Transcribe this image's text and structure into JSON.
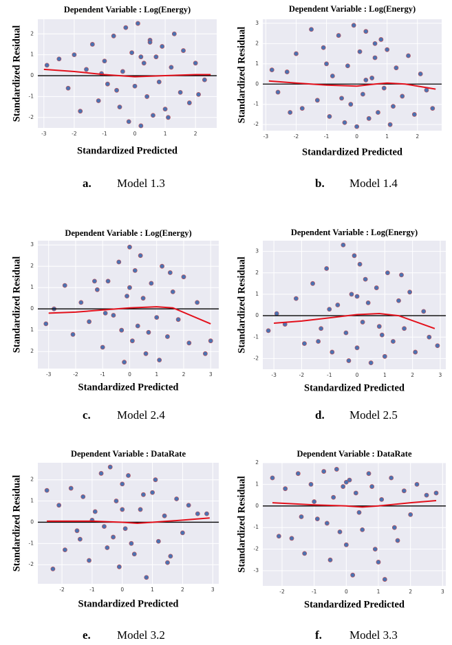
{
  "chart_data": [
    {
      "type": "scatter",
      "title": "Dependent Variable : Log(Energy)",
      "xlabel": "Standardized Predicted",
      "ylabel": "Standardized Residual",
      "caption_letter": "a.",
      "caption": "Model 1.3",
      "xlim": [
        -3.2,
        2.7
      ],
      "xticks": [
        -3,
        -2,
        -1,
        0,
        1,
        2
      ],
      "ylim": [
        -2.5,
        2.7
      ],
      "yticks": [
        -2,
        -1,
        0,
        1,
        2
      ],
      "grid": true,
      "hline": 0,
      "series": [
        {
          "color": "#4c72b0",
          "edge_color": "#c44e52",
          "x": [
            -2.9,
            -2.5,
            -2.2,
            -2.0,
            -1.8,
            -1.6,
            -1.4,
            -1.2,
            -1.0,
            -0.9,
            -0.7,
            -0.5,
            -0.4,
            -0.3,
            -0.2,
            -0.1,
            0,
            0.1,
            0.2,
            0.3,
            0.4,
            0.5,
            0.6,
            0.7,
            0.8,
            0.9,
            1.0,
            1.2,
            1.3,
            1.5,
            1.6,
            1.8,
            2.0,
            2.1,
            2.3,
            -0.6,
            0.2,
            1.1,
            -1.1,
            0.5
          ],
          "values": [
            0.5,
            0.8,
            -0.6,
            1.0,
            -1.7,
            0.3,
            1.5,
            -1.2,
            0.7,
            -0.4,
            1.9,
            -1.5,
            0.2,
            2.3,
            -2.2,
            1.1,
            -0.5,
            2.5,
            -2.4,
            0.6,
            -1.0,
            1.7,
            -1.9,
            0.9,
            -0.3,
            1.4,
            -1.6,
            0.4,
            2.0,
            -0.8,
            1.2,
            -1.3,
            0.6,
            -0.9,
            -0.2,
            -0.7,
            0.9,
            -2.0,
            0.1,
            1.6
          ]
        }
      ],
      "trend": {
        "color": "#e3101b",
        "x": [
          -3,
          -2,
          -1,
          0,
          1,
          2,
          2.5
        ],
        "values": [
          0.3,
          0.2,
          0.05,
          -0.05,
          0.0,
          0.05,
          0.05
        ]
      }
    },
    {
      "type": "scatter",
      "title": "Dependent Variable : Log(Energy)",
      "xlabel": "Standardized Predicted",
      "ylabel": "Standardized Residual",
      "caption_letter": "b.",
      "caption": "Model 1.4",
      "xlim": [
        -3.1,
        2.8
      ],
      "xticks": [
        -3,
        -2,
        -1,
        0,
        1,
        2
      ],
      "ylim": [
        -2.3,
        3.2
      ],
      "yticks": [
        -2,
        -1,
        0,
        1,
        2,
        3
      ],
      "grid": true,
      "hline": 0,
      "series": [
        {
          "color": "#4c72b0",
          "edge_color": "#c44e52",
          "x": [
            -2.8,
            -2.6,
            -2.3,
            -2.0,
            -1.8,
            -1.5,
            -1.3,
            -1.1,
            -0.9,
            -0.8,
            -0.6,
            -0.4,
            -0.3,
            -0.2,
            -0.1,
            0,
            0.1,
            0.2,
            0.3,
            0.4,
            0.5,
            0.6,
            0.7,
            0.8,
            0.9,
            1.0,
            1.2,
            1.3,
            1.5,
            1.7,
            1.9,
            2.1,
            2.3,
            2.5,
            -0.5,
            0.3,
            1.1,
            -1.0,
            0.6,
            -2.2
          ],
          "values": [
            0.7,
            -0.4,
            0.6,
            1.5,
            -1.2,
            2.7,
            -0.8,
            1.8,
            -1.6,
            0.4,
            2.4,
            -1.9,
            0.9,
            -1.0,
            2.9,
            -2.1,
            1.6,
            -0.5,
            2.6,
            -1.7,
            0.3,
            1.3,
            -1.4,
            2.2,
            -0.2,
            1.7,
            -1.1,
            0.8,
            -0.6,
            1.4,
            -1.5,
            0.5,
            -0.3,
            -1.2,
            -0.7,
            0.2,
            -2.0,
            1.0,
            2.0,
            -1.4
          ]
        }
      ],
      "trend": {
        "color": "#e3101b",
        "x": [
          -2.9,
          -2,
          -1,
          0,
          0.6,
          1,
          1.6,
          2.6
        ],
        "values": [
          0.15,
          0.05,
          -0.05,
          -0.1,
          0.0,
          0.05,
          0.0,
          -0.25
        ]
      }
    },
    {
      "type": "scatter",
      "title": "Dependent Variable : Log(Energy)",
      "xlabel": "Standardized Predicted",
      "ylabel": "Standardized Residual",
      "caption_letter": "c.",
      "caption": "Model 2.4",
      "xlim": [
        -3.4,
        3.3
      ],
      "xticks": [
        -3,
        -2,
        -1,
        0,
        1,
        2,
        3
      ],
      "ylim": [
        -2.8,
        3.2
      ],
      "yticks": [
        3,
        2,
        1,
        0,
        {
          "value": -1,
          "label": "1"
        },
        {
          "value": -2,
          "label": "2"
        }
      ],
      "grid": true,
      "hline": 0,
      "series": [
        {
          "color": "#4c72b0",
          "edge_color": "#c44e52",
          "x": [
            -3.1,
            -2.8,
            -2.4,
            -2.1,
            -1.8,
            -1.5,
            -1.2,
            -1.0,
            -0.8,
            -0.6,
            -0.4,
            -0.2,
            -0.1,
            0,
            0.1,
            0.2,
            0.3,
            0.4,
            0.6,
            0.8,
            1.0,
            1.2,
            1.4,
            1.6,
            1.8,
            2.0,
            2.2,
            2.5,
            2.8,
            3.0,
            -0.3,
            0.5,
            1.1,
            -0.9,
            0.0,
            -1.3,
            1.5,
            0.7
          ],
          "values": [
            -0.7,
            0.0,
            1.1,
            -1.2,
            0.3,
            -0.6,
            0.9,
            -1.8,
            1.3,
            -0.3,
            2.2,
            -2.5,
            0.6,
            2.9,
            -1.5,
            1.8,
            -0.8,
            2.5,
            -2.1,
            1.2,
            -0.4,
            2.0,
            -1.3,
            0.8,
            -0.5,
            1.5,
            -1.6,
            0.3,
            -2.1,
            -1.5,
            -1.0,
            0.5,
            -2.4,
            -0.2,
            1.0,
            1.3,
            1.7,
            -1.1
          ]
        }
      ],
      "trend": {
        "color": "#e3101b",
        "x": [
          -3,
          -2,
          -1,
          0,
          1,
          1.6,
          3
        ],
        "values": [
          -0.2,
          -0.15,
          -0.05,
          0.05,
          0.1,
          0.05,
          -0.7
        ]
      }
    },
    {
      "type": "scatter",
      "title": "Dependent Variable : Log(Energy)",
      "xlabel": "Standardized Predicted",
      "ylabel": "Standardized Residual",
      "caption_letter": "d.",
      "caption": "Model 2.5",
      "xlim": [
        -3.4,
        3.2
      ],
      "xticks": [
        -3,
        -2,
        -1,
        0,
        1,
        2,
        3
      ],
      "ylim": [
        -2.5,
        3.5
      ],
      "yticks": [
        -2,
        -1,
        0,
        1,
        2,
        3
      ],
      "grid": true,
      "hline": 0,
      "series": [
        {
          "color": "#4c72b0",
          "edge_color": "#c44e52",
          "x": [
            -3.2,
            -2.9,
            -2.6,
            -2.2,
            -1.9,
            -1.6,
            -1.3,
            -1.1,
            -0.9,
            -0.7,
            -0.5,
            -0.3,
            -0.2,
            -0.1,
            0,
            0.1,
            0.2,
            0.3,
            0.5,
            0.7,
            0.9,
            1.1,
            1.3,
            1.5,
            1.7,
            1.9,
            2.1,
            2.4,
            2.6,
            2.9,
            -0.4,
            0.4,
            1.0,
            -1.0,
            0.0,
            -1.4,
            1.6,
            0.8
          ],
          "values": [
            -0.7,
            0.1,
            -0.4,
            0.8,
            -1.3,
            1.5,
            -0.6,
            2.2,
            -1.7,
            0.5,
            3.3,
            -2.1,
            1.0,
            2.8,
            -1.5,
            2.4,
            -0.3,
            1.7,
            -2.2,
            1.3,
            -0.9,
            2.0,
            -1.2,
            0.7,
            -0.6,
            1.1,
            -1.7,
            0.2,
            -1.0,
            -1.4,
            -0.8,
            0.6,
            -1.9,
            0.3,
            0.9,
            -1.2,
            1.9,
            -0.5
          ]
        }
      ],
      "trend": {
        "color": "#e3101b",
        "x": [
          -3,
          -2,
          -1,
          0,
          0.8,
          1.5,
          2.8
        ],
        "values": [
          -0.35,
          -0.25,
          -0.1,
          0.05,
          0.1,
          0.0,
          -0.6
        ]
      }
    },
    {
      "type": "scatter",
      "title": "Dependent Variable : DataRate",
      "xlabel": "Standardized Predicted",
      "ylabel": "Standardized Residual",
      "caption_letter": "e.",
      "caption": "Model 3.2",
      "xlim": [
        -2.8,
        3.2
      ],
      "xticks": [
        -2,
        -1,
        0,
        1,
        2,
        3
      ],
      "ylim": [
        -2.9,
        2.8
      ],
      "yticks": [
        -2,
        -1,
        0,
        1,
        2
      ],
      "grid": true,
      "hline": 0,
      "series": [
        {
          "color": "#4c72b0",
          "edge_color": "#c44e52",
          "x": [
            -2.5,
            -2.3,
            -2.1,
            -1.9,
            -1.7,
            -1.5,
            -1.3,
            -1.1,
            -0.9,
            -0.7,
            -0.5,
            -0.4,
            -0.3,
            -0.2,
            -0.1,
            0,
            0.1,
            0.2,
            0.4,
            0.6,
            0.8,
            1.0,
            1.2,
            1.4,
            1.6,
            1.8,
            2.0,
            2.2,
            2.5,
            2.8,
            -0.6,
            0.3,
            1.1,
            -1.0,
            0.0,
            -1.4,
            1.5,
            0.7
          ],
          "values": [
            1.5,
            -2.2,
            0.8,
            -1.3,
            1.6,
            -0.4,
            1.2,
            -1.8,
            0.5,
            2.3,
            -1.2,
            2.6,
            -0.7,
            1.0,
            -2.1,
            1.8,
            -0.3,
            2.2,
            -1.5,
            0.6,
            -2.6,
            1.4,
            -0.9,
            0.3,
            -1.6,
            1.1,
            -0.5,
            0.8,
            0.4,
            0.4,
            -0.2,
            -1.0,
            2.0,
            0.1,
            0.6,
            -0.8,
            -1.9,
            1.3
          ]
        }
      ],
      "trend": {
        "color": "#e3101b",
        "x": [
          -2.5,
          -1,
          0,
          0.5,
          1,
          2,
          2.9
        ],
        "values": [
          0.05,
          0.05,
          0.0,
          -0.05,
          0.0,
          0.1,
          0.2
        ]
      }
    },
    {
      "type": "scatter",
      "title": "Dependent Variable : DataRate",
      "xlabel": "Standardized Predicted",
      "ylabel": "Standardized Residual",
      "caption_letter": "f.",
      "caption": "Model 3.3",
      "xlim": [
        -2.6,
        3.1
      ],
      "xticks": [
        -2,
        -1,
        0,
        1,
        2,
        3
      ],
      "ylim": [
        -3.7,
        2.0
      ],
      "yticks": [
        -3,
        -2,
        -1,
        0,
        1,
        2
      ],
      "grid": true,
      "hline": 0,
      "series": [
        {
          "color": "#4c72b0",
          "edge_color": "#c44e52",
          "x": [
            -2.3,
            -2.1,
            -1.9,
            -1.7,
            -1.5,
            -1.3,
            -1.1,
            -0.9,
            -0.7,
            -0.5,
            -0.4,
            -0.3,
            -0.2,
            -0.1,
            0,
            0.1,
            0.2,
            0.3,
            0.5,
            0.7,
            0.9,
            1.1,
            1.2,
            1.4,
            1.6,
            1.8,
            2.0,
            2.2,
            2.5,
            2.8,
            -0.6,
            0.4,
            1.0,
            -1.0,
            0.0,
            -1.4,
            1.5,
            0.8
          ],
          "values": [
            1.3,
            -1.4,
            0.8,
            -1.5,
            1.5,
            -2.2,
            1.0,
            -0.6,
            1.6,
            -2.5,
            0.4,
            1.7,
            -1.2,
            0.9,
            -1.8,
            1.2,
            -3.2,
            0.6,
            -1.1,
            1.5,
            -2.0,
            0.3,
            -3.4,
            1.3,
            -1.6,
            0.7,
            -0.4,
            1.0,
            0.5,
            0.6,
            -0.8,
            -0.3,
            -2.6,
            0.2,
            1.1,
            -0.5,
            -1.0,
            0.9
          ]
        }
      ],
      "trend": {
        "color": "#e3101b",
        "x": [
          -2.3,
          -1,
          0,
          0.5,
          1,
          2,
          2.8
        ],
        "values": [
          0.15,
          0.05,
          0.0,
          -0.05,
          0.0,
          0.15,
          0.25
        ]
      }
    }
  ]
}
